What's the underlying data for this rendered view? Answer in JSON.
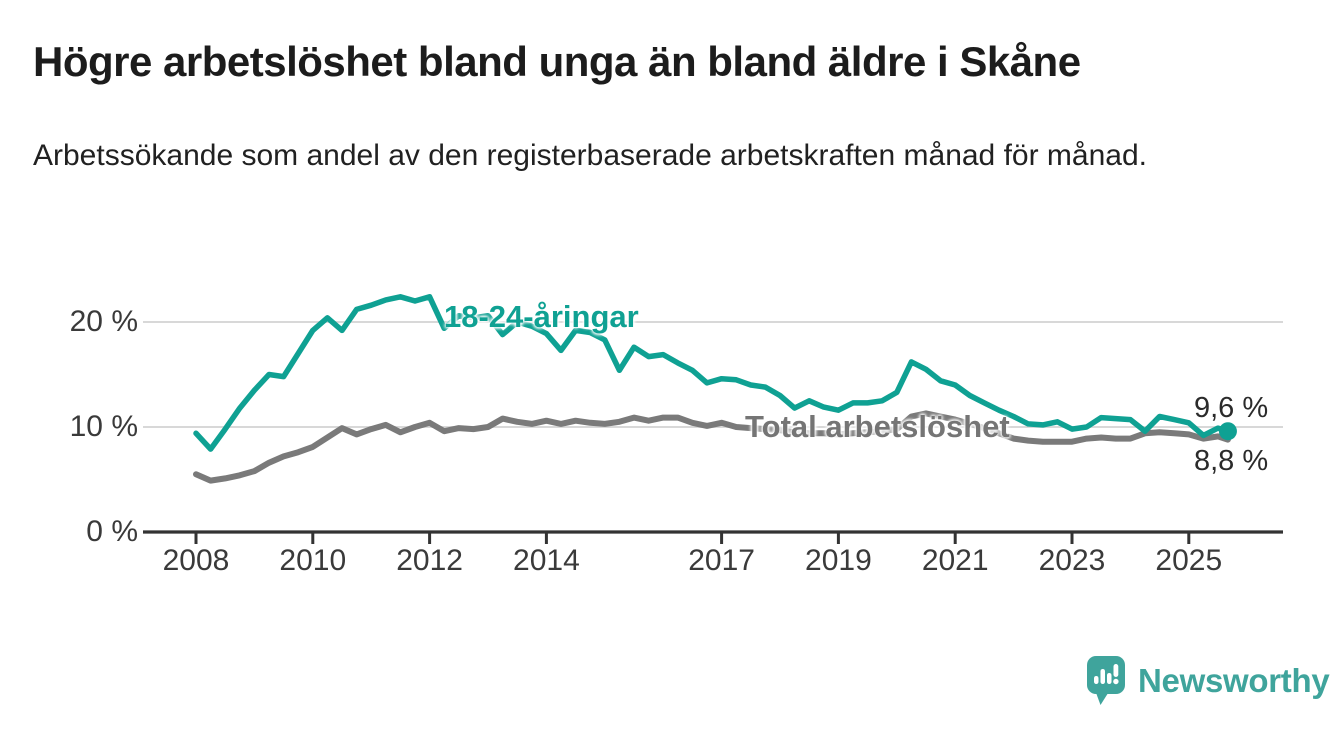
{
  "page": {
    "title": "Högre arbetslöshet bland unga än bland äldre i Skåne",
    "subtitle": "Arbetssökande som andel av den registerbaserade arbetskraften månad för månad."
  },
  "branding": {
    "logo_text": "Newsworthy",
    "logo_icon": "bar-chart-speech-bubble-icon",
    "logo_color": "#3fa49c"
  },
  "colors": {
    "young_line": "#0fa193",
    "total_line": "#7a7a7a",
    "total_label": "#757575",
    "grid": "#d8d8d8",
    "axis": "#333333",
    "tick_text": "#3a3a3a",
    "title_text": "#1c1c1c"
  },
  "chart_data": {
    "type": "line",
    "title": "Högre arbetslöshet bland unga än bland äldre i Skåne",
    "subtitle": "Arbetssökande som andel av den registerbaserade arbetskraften månad för månad.",
    "xlabel": "",
    "ylabel": "",
    "unit": "%",
    "grid": "horizontal-only",
    "legend_position": "inline-labels-on-lines",
    "ylim": [
      0,
      23.5
    ],
    "xlim": [
      2007.1,
      2026.6
    ],
    "y_ticks": [
      {
        "value": 0,
        "label": "0 %"
      },
      {
        "value": 10,
        "label": "10 %"
      },
      {
        "value": 20,
        "label": "20 %"
      }
    ],
    "x_ticks": [
      {
        "year": 2008,
        "label": "2008"
      },
      {
        "year": 2010,
        "label": "2010"
      },
      {
        "year": 2012,
        "label": "2012"
      },
      {
        "year": 2014,
        "label": "2014"
      },
      {
        "year": 2017,
        "label": "2017"
      },
      {
        "year": 2019,
        "label": "2019"
      },
      {
        "year": 2021,
        "label": "2021"
      },
      {
        "year": 2023,
        "label": "2023"
      },
      {
        "year": 2025,
        "label": "2025"
      }
    ],
    "x": [
      2008.0,
      2008.25,
      2008.5,
      2008.75,
      2009.0,
      2009.25,
      2009.5,
      2009.75,
      2010.0,
      2010.25,
      2010.5,
      2010.75,
      2011.0,
      2011.25,
      2011.5,
      2011.75,
      2012.0,
      2012.25,
      2012.5,
      2012.75,
      2013.0,
      2013.25,
      2013.5,
      2013.75,
      2014.0,
      2014.25,
      2014.5,
      2014.75,
      2015.0,
      2015.25,
      2015.5,
      2015.75,
      2016.0,
      2016.25,
      2016.5,
      2016.75,
      2017.0,
      2017.25,
      2017.5,
      2017.75,
      2018.0,
      2018.25,
      2018.5,
      2018.75,
      2019.0,
      2019.25,
      2019.5,
      2019.75,
      2020.0,
      2020.25,
      2020.5,
      2020.75,
      2021.0,
      2021.25,
      2021.5,
      2021.75,
      2022.0,
      2022.25,
      2022.5,
      2022.75,
      2023.0,
      2023.25,
      2023.5,
      2023.75,
      2024.0,
      2024.25,
      2024.5,
      2024.75,
      2025.0,
      2025.25,
      2025.5,
      2025.67
    ],
    "series": [
      {
        "name": "18-24-åringar",
        "color": "#0fa193",
        "end_label": "9,6 %",
        "end_value": 9.6,
        "end_dot": true,
        "values": [
          9.4,
          7.9,
          9.8,
          11.8,
          13.5,
          15.0,
          14.8,
          17.0,
          19.2,
          20.4,
          19.2,
          21.2,
          21.6,
          22.1,
          22.4,
          22.0,
          22.4,
          19.4,
          20.6,
          20.4,
          20.6,
          18.8,
          20.0,
          19.6,
          18.9,
          17.3,
          19.2,
          19.0,
          18.3,
          15.4,
          17.6,
          16.7,
          16.9,
          16.1,
          15.4,
          14.2,
          14.6,
          14.5,
          14.0,
          13.8,
          13.0,
          11.8,
          12.5,
          11.9,
          11.6,
          12.3,
          12.3,
          12.5,
          13.3,
          16.2,
          15.5,
          14.4,
          14.0,
          13.0,
          12.3,
          11.6,
          11.0,
          10.3,
          10.2,
          10.5,
          9.8,
          10.0,
          10.9,
          10.8,
          10.7,
          9.6,
          11.0,
          10.7,
          10.4,
          9.2,
          9.9,
          9.6
        ]
      },
      {
        "name": "Total arbetslöshet",
        "color": "#7a7a7a",
        "end_label": "8,8 %",
        "end_value": 8.8,
        "end_dot": false,
        "values": [
          5.5,
          4.9,
          5.1,
          5.4,
          5.8,
          6.6,
          7.2,
          7.6,
          8.1,
          9.0,
          9.9,
          9.3,
          9.8,
          10.2,
          9.5,
          10.0,
          10.4,
          9.6,
          9.9,
          9.8,
          10.0,
          10.8,
          10.5,
          10.3,
          10.6,
          10.3,
          10.6,
          10.4,
          10.3,
          10.5,
          10.9,
          10.6,
          10.9,
          10.9,
          10.4,
          10.1,
          10.4,
          10.0,
          9.9,
          9.8,
          9.7,
          9.5,
          9.4,
          9.4,
          9.3,
          9.4,
          9.5,
          9.6,
          9.8,
          11.0,
          11.3,
          11.0,
          10.7,
          10.3,
          9.9,
          9.4,
          8.9,
          8.7,
          8.6,
          8.6,
          8.6,
          8.9,
          9.0,
          8.9,
          8.9,
          9.4,
          9.5,
          9.4,
          9.3,
          8.9,
          9.1,
          8.8
        ]
      }
    ]
  }
}
